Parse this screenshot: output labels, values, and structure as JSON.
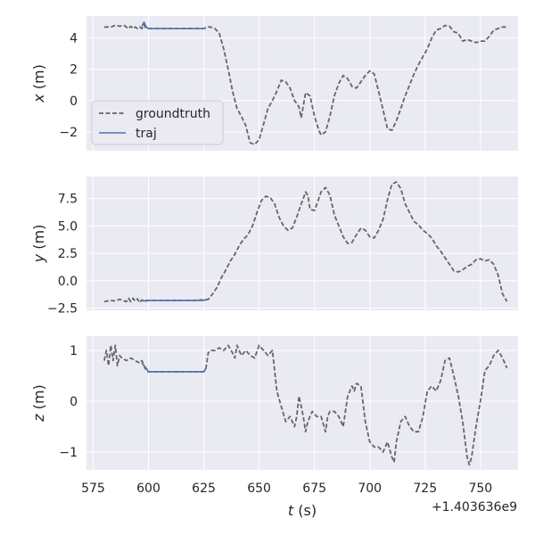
{
  "colors": {
    "background": "#eaeaf2",
    "grid": "#ffffff",
    "groundtruth": "#666666",
    "traj": "#4c72b0",
    "text": "#262626"
  },
  "chart_data": [
    {
      "type": "line",
      "xlabel_var": "t",
      "xlabel_unit": " (s)",
      "ylabel_var": "x",
      "ylabel_unit": " (m)",
      "xlim": [
        572,
        767
      ],
      "ylim": [
        -3.2,
        5.4
      ],
      "xticks": [
        575,
        600,
        625,
        650,
        675,
        700,
        725,
        750
      ],
      "xtick_labels": [
        "575",
        "600",
        "625",
        "650",
        "675",
        "700",
        "725",
        "750"
      ],
      "yticks": [
        -2,
        0,
        2,
        4
      ],
      "ytick_labels": [
        "−2",
        "0",
        "2",
        "4"
      ],
      "show_xtick_labels": false,
      "legend": {
        "position": "lower-left",
        "entries": [
          {
            "label": "groundtruth",
            "style": "dashed",
            "color_key": "groundtruth"
          },
          {
            "label": "traj",
            "style": "solid",
            "color_key": "traj"
          }
        ]
      },
      "series": [
        {
          "name": "groundtruth",
          "style": "dashed",
          "x": [
            580,
            583,
            585,
            587,
            589,
            591,
            592,
            593,
            594,
            595,
            596,
            597,
            598,
            599,
            600,
            605,
            610,
            615,
            620,
            625,
            627,
            628,
            630,
            632,
            634,
            636,
            638,
            640,
            642,
            644,
            645,
            646,
            648,
            650,
            652,
            654,
            656,
            658,
            660,
            662,
            664,
            666,
            668,
            669,
            671,
            673,
            675,
            677,
            678,
            680,
            682,
            684,
            686,
            688,
            690,
            692,
            694,
            696,
            698,
            700,
            702,
            704,
            706,
            708,
            710,
            712,
            714,
            716,
            718,
            720,
            722,
            724,
            726,
            728,
            730,
            732,
            734,
            736,
            738,
            740,
            742,
            744,
            746,
            748,
            750,
            752,
            754,
            756,
            758,
            760,
            762
          ],
          "y": [
            4.7,
            4.7,
            4.8,
            4.75,
            4.8,
            4.6,
            4.75,
            4.6,
            4.7,
            4.6,
            4.7,
            4.6,
            4.85,
            4.6,
            4.6,
            4.6,
            4.6,
            4.6,
            4.6,
            4.6,
            4.7,
            4.7,
            4.6,
            4.3,
            3.3,
            2.0,
            0.6,
            -0.5,
            -1.0,
            -1.6,
            -2.2,
            -2.7,
            -2.8,
            -2.5,
            -1.5,
            -0.5,
            0.0,
            0.6,
            1.3,
            1.2,
            0.8,
            0.0,
            -0.4,
            -1.1,
            0.5,
            0.3,
            -1.0,
            -1.9,
            -2.2,
            -2.0,
            -1.0,
            0.3,
            1.1,
            1.6,
            1.4,
            0.9,
            0.8,
            1.2,
            1.6,
            1.9,
            1.7,
            0.6,
            -0.6,
            -1.8,
            -1.9,
            -1.3,
            -0.5,
            0.3,
            1.0,
            1.7,
            2.3,
            2.8,
            3.3,
            4.0,
            4.5,
            4.6,
            4.8,
            4.75,
            4.4,
            4.3,
            3.8,
            3.9,
            3.8,
            3.7,
            3.8,
            3.8,
            4.1,
            4.5,
            4.6,
            4.7,
            4.7
          ]
        },
        {
          "name": "traj",
          "style": "solid",
          "x": [
            597,
            598,
            599,
            600,
            605,
            610,
            615,
            620,
            625,
            626
          ],
          "y": [
            4.75,
            5.0,
            4.7,
            4.6,
            4.6,
            4.6,
            4.6,
            4.6,
            4.6,
            4.65
          ]
        }
      ]
    },
    {
      "type": "line",
      "xlabel_var": "t",
      "xlabel_unit": " (s)",
      "ylabel_var": "y",
      "ylabel_unit": " (m)",
      "xlim": [
        572,
        767
      ],
      "ylim": [
        -2.7,
        9.5
      ],
      "xticks": [
        575,
        600,
        625,
        650,
        675,
        700,
        725,
        750
      ],
      "xtick_labels": [
        "575",
        "600",
        "625",
        "650",
        "675",
        "700",
        "725",
        "750"
      ],
      "yticks": [
        -2.5,
        0.0,
        2.5,
        5.0,
        7.5
      ],
      "ytick_labels": [
        "−2.5",
        "0.0",
        "2.5",
        "5.0",
        "7.5"
      ],
      "show_xtick_labels": false,
      "series": [
        {
          "name": "groundtruth",
          "style": "dashed",
          "x": [
            580,
            583,
            585,
            587,
            589,
            590,
            591,
            592,
            593,
            594,
            595,
            596,
            597,
            598,
            599,
            600,
            605,
            610,
            615,
            620,
            625,
            627,
            629,
            631,
            633,
            635,
            637,
            639,
            641,
            643,
            645,
            647,
            649,
            651,
            653,
            655,
            657,
            659,
            661,
            663,
            665,
            667,
            669,
            670,
            671,
            672,
            673,
            675,
            677,
            678,
            680,
            682,
            684,
            686,
            688,
            690,
            692,
            694,
            696,
            698,
            700,
            702,
            704,
            706,
            708,
            710,
            712,
            714,
            716,
            718,
            720,
            722,
            724,
            726,
            728,
            730,
            732,
            734,
            736,
            738,
            740,
            742,
            744,
            746,
            748,
            750,
            752,
            754,
            756,
            758,
            760,
            762
          ],
          "y": [
            -1.9,
            -1.8,
            -1.85,
            -1.7,
            -1.85,
            -1.9,
            -1.6,
            -1.9,
            -1.6,
            -1.85,
            -1.65,
            -2.0,
            -1.75,
            -1.9,
            -1.85,
            -1.8,
            -1.8,
            -1.8,
            -1.8,
            -1.8,
            -1.75,
            -1.7,
            -1.2,
            -0.6,
            0.3,
            1.0,
            1.8,
            2.4,
            3.2,
            3.8,
            4.2,
            5.0,
            6.2,
            7.3,
            7.7,
            7.6,
            7.0,
            5.8,
            5.0,
            4.6,
            4.8,
            5.8,
            7.0,
            7.5,
            8.1,
            7.8,
            6.5,
            6.4,
            7.5,
            8.1,
            8.5,
            7.8,
            6.0,
            5.0,
            4.0,
            3.4,
            3.5,
            4.2,
            4.8,
            4.6,
            4.0,
            3.9,
            4.6,
            5.6,
            7.4,
            8.8,
            9.0,
            8.4,
            7.0,
            6.2,
            5.4,
            5.1,
            4.6,
            4.3,
            3.9,
            3.2,
            2.7,
            2.1,
            1.5,
            0.9,
            0.8,
            1.0,
            1.3,
            1.5,
            1.9,
            2.0,
            1.8,
            1.9,
            1.5,
            0.5,
            -1.2,
            -1.9
          ]
        },
        {
          "name": "traj",
          "style": "solid",
          "x": [
            597,
            598,
            599,
            600,
            605,
            610,
            615,
            620,
            625,
            626
          ],
          "y": [
            -1.75,
            -1.85,
            -1.8,
            -1.8,
            -1.8,
            -1.8,
            -1.8,
            -1.8,
            -1.8,
            -1.75
          ]
        }
      ]
    },
    {
      "type": "line",
      "xlabel_var": "t",
      "xlabel_unit": " (s)",
      "ylabel_var": "z",
      "ylabel_unit": " (m)",
      "xlim": [
        572,
        767
      ],
      "ylim": [
        -1.35,
        1.28
      ],
      "xticks": [
        575,
        600,
        625,
        650,
        675,
        700,
        725,
        750
      ],
      "xtick_labels": [
        "575",
        "600",
        "625",
        "650",
        "675",
        "700",
        "725",
        "750"
      ],
      "yticks": [
        -1,
        0,
        1
      ],
      "ytick_labels": [
        "−1",
        "0",
        "1"
      ],
      "show_xtick_labels": true,
      "offset_text": "+1.403636e9",
      "series": [
        {
          "name": "groundtruth",
          "style": "dashed",
          "x": [
            580,
            581,
            582,
            583,
            584,
            585,
            586,
            587,
            588,
            590,
            592,
            594,
            596,
            597,
            598,
            599,
            600,
            605,
            610,
            615,
            620,
            625,
            626,
            627,
            628,
            630,
            632,
            634,
            636,
            638,
            639,
            640,
            642,
            644,
            646,
            648,
            650,
            652,
            654,
            656,
            657,
            658,
            660,
            662,
            664,
            666,
            667,
            668,
            670,
            671,
            672,
            674,
            676,
            678,
            680,
            681,
            682,
            684,
            686,
            688,
            690,
            692,
            693,
            694,
            696,
            698,
            700,
            702,
            704,
            706,
            708,
            710,
            711,
            712,
            714,
            716,
            718,
            720,
            722,
            724,
            726,
            728,
            730,
            732,
            734,
            736,
            738,
            740,
            742,
            744,
            745,
            746,
            748,
            750,
            752,
            754,
            756,
            758,
            760,
            762
          ],
          "y": [
            0.8,
            1.0,
            0.7,
            1.1,
            0.8,
            1.1,
            0.7,
            0.9,
            0.85,
            0.8,
            0.85,
            0.8,
            0.75,
            0.8,
            0.7,
            0.6,
            0.58,
            0.58,
            0.58,
            0.58,
            0.58,
            0.58,
            0.65,
            0.95,
            1.0,
            1.0,
            1.05,
            1.0,
            1.1,
            0.95,
            0.85,
            1.1,
            0.9,
            1.0,
            0.9,
            0.85,
            1.1,
            1.0,
            0.9,
            1.0,
            0.6,
            0.2,
            -0.1,
            -0.4,
            -0.3,
            -0.5,
            -0.3,
            0.1,
            -0.3,
            -0.6,
            -0.4,
            -0.2,
            -0.3,
            -0.3,
            -0.6,
            -0.3,
            -0.2,
            -0.2,
            -0.3,
            -0.5,
            0.1,
            0.3,
            0.2,
            0.35,
            0.3,
            -0.4,
            -0.8,
            -0.9,
            -0.9,
            -1.0,
            -0.8,
            -1.1,
            -1.2,
            -0.8,
            -0.4,
            -0.3,
            -0.5,
            -0.6,
            -0.6,
            -0.3,
            0.2,
            0.3,
            0.2,
            0.4,
            0.8,
            0.85,
            0.5,
            0.1,
            -0.4,
            -1.1,
            -1.25,
            -1.1,
            -0.5,
            0.0,
            0.6,
            0.7,
            0.9,
            1.0,
            0.85,
            0.65
          ]
        },
        {
          "name": "traj",
          "style": "solid",
          "x": [
            597,
            598,
            599,
            600,
            605,
            610,
            615,
            620,
            625,
            626
          ],
          "y": [
            0.75,
            0.7,
            0.65,
            0.58,
            0.58,
            0.58,
            0.58,
            0.58,
            0.58,
            0.65
          ]
        }
      ]
    }
  ]
}
